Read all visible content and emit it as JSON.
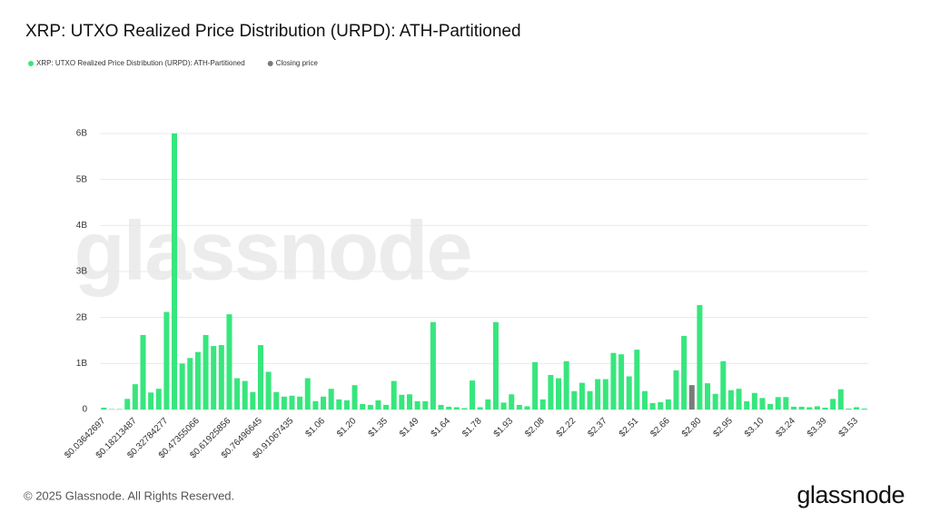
{
  "chart_data": {
    "type": "bar",
    "title": "XRP: UTXO Realized Price Distribution (URPD): ATH-Partitioned",
    "watermark": "glassnode",
    "categories": [
      "$0.03642697",
      null,
      null,
      null,
      "$0.18213487",
      null,
      null,
      null,
      "$0.32784277",
      null,
      null,
      null,
      "$0.47355066",
      null,
      null,
      null,
      "$0.61925856",
      null,
      null,
      null,
      "$0.76496645",
      null,
      null,
      null,
      "$0.91067435",
      null,
      null,
      null,
      "$1.06",
      null,
      null,
      null,
      "$1.20",
      null,
      null,
      null,
      "$1.35",
      null,
      null,
      null,
      "$1.49",
      null,
      null,
      null,
      "$1.64",
      null,
      null,
      null,
      "$1.78",
      null,
      null,
      null,
      "$1.93",
      null,
      null,
      null,
      "$2.08",
      null,
      null,
      null,
      "$2.22",
      null,
      null,
      null,
      "$2.37",
      null,
      null,
      null,
      "$2.51",
      null,
      null,
      null,
      "$2.66",
      null,
      null,
      null,
      "$2.80",
      null,
      null,
      null,
      "$2.95",
      null,
      null,
      null,
      "$3.10",
      null,
      null,
      null,
      "$3.24",
      null,
      null,
      null,
      "$3.39",
      null,
      null,
      null,
      "$3.53",
      null
    ],
    "series": [
      {
        "name": "XRP: UTXO Realized Price Distribution (URPD): ATH-Partitioned",
        "color": "#37e67d",
        "values": [
          0.04,
          0.01,
          0.01,
          0.23,
          0.55,
          1.62,
          0.37,
          0.45,
          2.12,
          6.0,
          1.0,
          1.12,
          1.25,
          1.62,
          1.38,
          1.4,
          2.07,
          0.68,
          0.62,
          0.38,
          1.4,
          0.82,
          0.38,
          0.28,
          0.3,
          0.28,
          0.68,
          0.18,
          0.28,
          0.45,
          0.22,
          0.2,
          0.53,
          0.12,
          0.1,
          0.2,
          0.1,
          0.62,
          0.32,
          0.33,
          0.18,
          0.18,
          1.9,
          0.1,
          0.06,
          0.05,
          0.03,
          0.63,
          0.05,
          0.22,
          1.9,
          0.15,
          0.33,
          0.1,
          0.07,
          1.03,
          0.22,
          0.75,
          0.68,
          1.05,
          0.4,
          0.58,
          0.4,
          0.66,
          0.66,
          1.23,
          1.2,
          0.72,
          1.3,
          0.4,
          0.14,
          0.16,
          0.22,
          0.85,
          1.6,
          null,
          2.27,
          0.57,
          0.34,
          1.05,
          0.42,
          0.45,
          0.18,
          0.36,
          0.25,
          0.12,
          0.27,
          0.27,
          0.06,
          0.06,
          0.05,
          0.07,
          0.04,
          0.23,
          0.44,
          0.02,
          0.05,
          0.02
        ]
      },
      {
        "name": "Closing price",
        "color": "#7a7a7a",
        "values": [
          null,
          null,
          null,
          null,
          null,
          null,
          null,
          null,
          null,
          null,
          null,
          null,
          null,
          null,
          null,
          null,
          null,
          null,
          null,
          null,
          null,
          null,
          null,
          null,
          null,
          null,
          null,
          null,
          null,
          null,
          null,
          null,
          null,
          null,
          null,
          null,
          null,
          null,
          null,
          null,
          null,
          null,
          null,
          null,
          null,
          null,
          null,
          null,
          null,
          null,
          null,
          null,
          null,
          null,
          null,
          null,
          null,
          null,
          null,
          null,
          null,
          null,
          null,
          null,
          null,
          null,
          null,
          null,
          null,
          null,
          null,
          null,
          null,
          null,
          null,
          0.53,
          null,
          null,
          null,
          null,
          null,
          null,
          null,
          null,
          null,
          null,
          null,
          null,
          null,
          null,
          null,
          null,
          null,
          null,
          null,
          null,
          null,
          null
        ]
      }
    ],
    "ylim": [
      0,
      6
    ],
    "yticks": [
      0,
      {
        "value": 1,
        "label": "1B"
      },
      {
        "value": 2,
        "label": "2B"
      },
      {
        "value": 3,
        "label": "3B"
      },
      {
        "value": 4,
        "label": "4B"
      },
      {
        "value": 5,
        "label": "5B"
      },
      {
        "value": 6,
        "label": "6B"
      }
    ],
    "grid": true
  },
  "footer": {
    "copyright": "© 2025 Glassnode. All Rights Reserved.",
    "logo": "glassnode"
  }
}
